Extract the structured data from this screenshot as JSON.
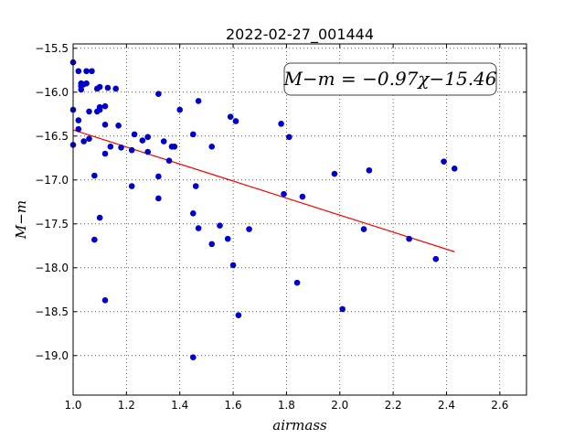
{
  "chart_data": {
    "type": "scatter",
    "title": "2022-02-27_001444",
    "xlabel": "airmass",
    "ylabel": "M−m",
    "xlim": [
      1.0,
      2.7
    ],
    "ylim": [
      -19.45,
      -15.45
    ],
    "xticks": [
      1.0,
      1.2,
      1.4,
      1.6,
      1.8,
      2.0,
      2.2,
      2.4,
      2.6
    ],
    "xtick_labels": [
      "1.0",
      "1.2",
      "1.4",
      "1.6",
      "1.8",
      "2.0",
      "2.2",
      "2.4",
      "2.6"
    ],
    "yticks": [
      -15.5,
      -16.0,
      -16.5,
      -17.0,
      -17.5,
      -18.0,
      -18.5,
      -19.0
    ],
    "ytick_labels": [
      "−15.5",
      "−16.0",
      "−16.5",
      "−17.0",
      "−17.5",
      "−18.0",
      "−18.5",
      "−19.0"
    ],
    "grid": true,
    "annotation": "M−m = −0.97χ−15.46",
    "colors": {
      "points": "#0000cc",
      "fit_line": "#ff0000"
    },
    "points": [
      [
        1.0,
        -15.66
      ],
      [
        1.0,
        -16.2
      ],
      [
        1.0,
        -16.6
      ],
      [
        1.02,
        -15.76
      ],
      [
        1.02,
        -16.32
      ],
      [
        1.02,
        -16.42
      ],
      [
        1.03,
        -15.9
      ],
      [
        1.03,
        -15.93
      ],
      [
        1.03,
        -15.97
      ],
      [
        1.04,
        -15.91
      ],
      [
        1.04,
        -16.56
      ],
      [
        1.05,
        -15.9
      ],
      [
        1.05,
        -15.76
      ],
      [
        1.06,
        -16.22
      ],
      [
        1.06,
        -16.53
      ],
      [
        1.07,
        -15.76
      ],
      [
        1.08,
        -16.95
      ],
      [
        1.08,
        -17.68
      ],
      [
        1.09,
        -15.96
      ],
      [
        1.09,
        -16.22
      ],
      [
        1.1,
        -15.94
      ],
      [
        1.1,
        -16.17
      ],
      [
        1.1,
        -16.2
      ],
      [
        1.1,
        -17.43
      ],
      [
        1.12,
        -16.37
      ],
      [
        1.12,
        -16.16
      ],
      [
        1.12,
        -16.7
      ],
      [
        1.12,
        -18.37
      ],
      [
        1.13,
        -15.95
      ],
      [
        1.14,
        -16.62
      ],
      [
        1.16,
        -15.96
      ],
      [
        1.17,
        -16.38
      ],
      [
        1.18,
        -16.63
      ],
      [
        1.22,
        -16.66
      ],
      [
        1.22,
        -17.07
      ],
      [
        1.23,
        -16.48
      ],
      [
        1.26,
        -16.55
      ],
      [
        1.28,
        -16.68
      ],
      [
        1.28,
        -16.51
      ],
      [
        1.32,
        -16.02
      ],
      [
        1.32,
        -16.96
      ],
      [
        1.32,
        -17.21
      ],
      [
        1.34,
        -16.56
      ],
      [
        1.36,
        -16.78
      ],
      [
        1.37,
        -16.62
      ],
      [
        1.38,
        -16.62
      ],
      [
        1.4,
        -16.2
      ],
      [
        1.45,
        -16.48
      ],
      [
        1.45,
        -17.38
      ],
      [
        1.45,
        -19.02
      ],
      [
        1.46,
        -17.07
      ],
      [
        1.47,
        -16.1
      ],
      [
        1.47,
        -17.55
      ],
      [
        1.52,
        -16.62
      ],
      [
        1.52,
        -17.73
      ],
      [
        1.55,
        -17.52
      ],
      [
        1.58,
        -17.67
      ],
      [
        1.59,
        -16.28
      ],
      [
        1.6,
        -17.97
      ],
      [
        1.61,
        -16.33
      ],
      [
        1.62,
        -18.54
      ],
      [
        1.66,
        -17.56
      ],
      [
        1.78,
        -16.36
      ],
      [
        1.79,
        -17.16
      ],
      [
        1.81,
        -16.51
      ],
      [
        1.84,
        -18.17
      ],
      [
        1.86,
        -17.19
      ],
      [
        1.98,
        -16.93
      ],
      [
        2.01,
        -18.47
      ],
      [
        2.09,
        -17.56
      ],
      [
        2.11,
        -16.89
      ],
      [
        2.26,
        -17.67
      ],
      [
        2.36,
        -17.9
      ],
      [
        2.39,
        -16.79
      ],
      [
        2.43,
        -16.87
      ]
    ],
    "fit": {
      "slope": -0.97,
      "intercept": -15.46,
      "x_range": [
        1.0,
        2.43
      ]
    }
  }
}
